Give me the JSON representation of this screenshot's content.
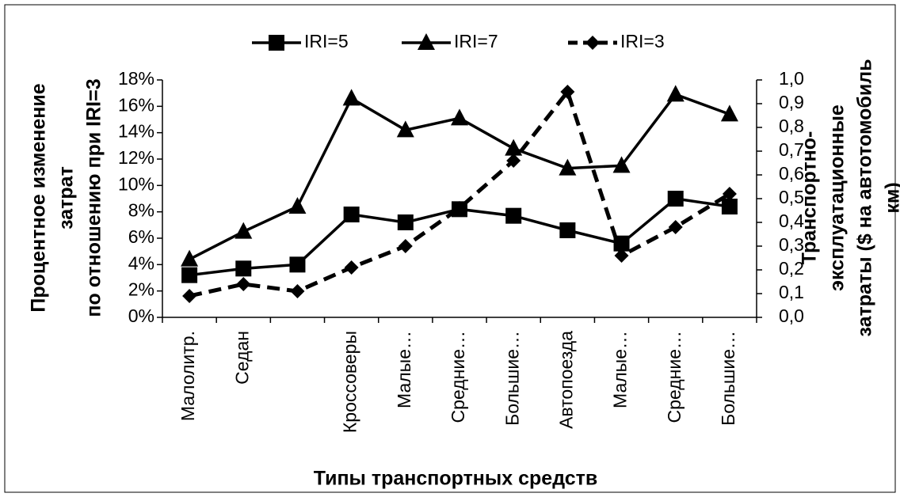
{
  "chart_data": {
    "type": "line",
    "y_label": [
      "Процентное изменение",
      "затрат",
      "по отношению при IRI=3"
    ],
    "y2_label": [
      "Транспортно-",
      "эксплуатационные",
      "затраты ($ на автотомобиль",
      "км)"
    ],
    "x_label": "Типы транспортных средств",
    "categories": [
      "Малолитр.",
      "Седан",
      null,
      "Кроссоверы",
      "Малые…",
      "Средние…",
      "Большие…",
      "Автопоезда",
      "Малые…",
      "Средние…",
      "Большие…"
    ],
    "ylim": [
      0,
      18
    ],
    "yticks": [
      {
        "value": 0,
        "label": "0%"
      },
      {
        "value": 2,
        "label": "2%"
      },
      {
        "value": 4,
        "label": "4%"
      },
      {
        "value": 6,
        "label": "6%"
      },
      {
        "value": 8,
        "label": "8%"
      },
      {
        "value": 10,
        "label": "10%"
      },
      {
        "value": 12,
        "label": "12%"
      },
      {
        "value": 14,
        "label": "14%"
      },
      {
        "value": 16,
        "label": "16%"
      },
      {
        "value": 18,
        "label": "18%"
      }
    ],
    "y2lim": [
      0,
      1
    ],
    "y2ticks": [
      {
        "value": 0,
        "label": "0,0"
      },
      {
        "value": 0.1,
        "label": "0,1"
      },
      {
        "value": 0.2,
        "label": "0,2"
      },
      {
        "value": 0.3,
        "label": "0,3"
      },
      {
        "value": 0.4,
        "label": "0,4"
      },
      {
        "value": 0.5,
        "label": "0,5"
      },
      {
        "value": 0.6,
        "label": "0,6"
      },
      {
        "value": 0.7,
        "label": "0,7"
      },
      {
        "value": 0.8,
        "label": "0,8"
      },
      {
        "value": 0.9,
        "label": "0,9"
      },
      {
        "value": 1,
        "label": "1,0"
      }
    ],
    "series": [
      {
        "name": "IRI=5",
        "color": "#000000",
        "marker": "square",
        "values": [
          3.2,
          3.7,
          4.0,
          7.8,
          7.2,
          8.2,
          7.7,
          6.6,
          5.6,
          9.0,
          8.4
        ]
      },
      {
        "name": "IRI=7",
        "color": "#000000",
        "marker": "triangle",
        "values": [
          4.4,
          6.5,
          8.4,
          16.6,
          14.2,
          15.1,
          12.8,
          11.3,
          11.5,
          16.9,
          15.4
        ]
      },
      {
        "name": "IRI=3",
        "color": "#000000",
        "marker": "diamond",
        "dashed": true,
        "axis": "y2",
        "values": [
          0.09,
          0.14,
          0.11,
          0.21,
          0.3,
          0.46,
          0.66,
          0.95,
          0.26,
          0.38,
          0.52
        ]
      }
    ]
  }
}
